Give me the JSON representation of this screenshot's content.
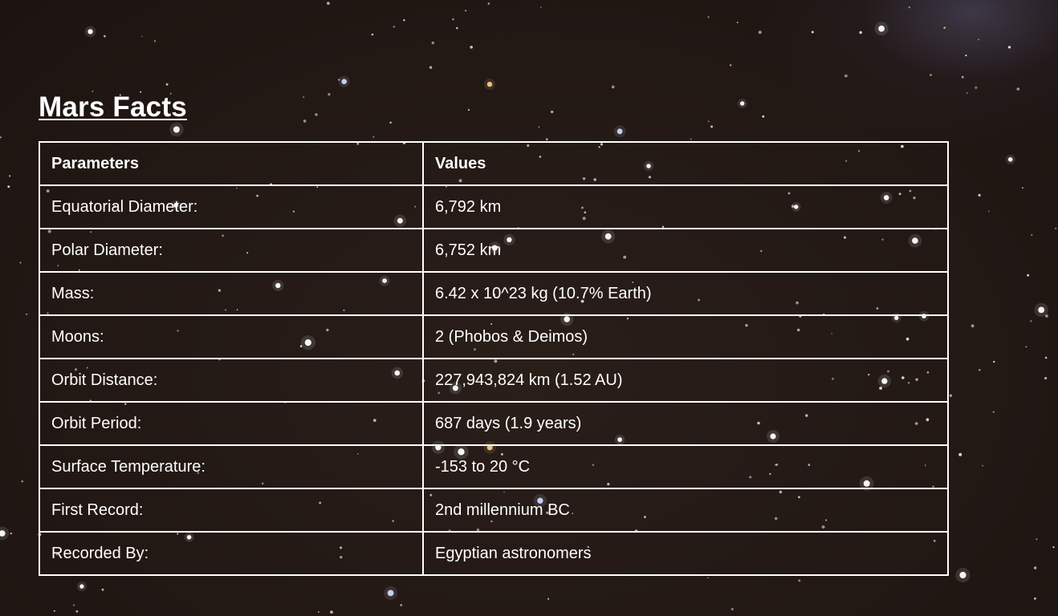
{
  "page": {
    "title": "Mars Facts"
  },
  "table": {
    "headers": [
      "Parameters",
      "Values"
    ],
    "rows": [
      [
        "Equatorial Diameter:",
        "6,792 km"
      ],
      [
        "Polar Diameter:",
        "6,752 km"
      ],
      [
        "Mass:",
        "6.42 x 10^23 kg (10.7% Earth)"
      ],
      [
        "Moons:",
        "2 (Phobos & Deimos)"
      ],
      [
        "Orbit Distance:",
        "227,943,824 km (1.52 AU)"
      ],
      [
        "Orbit Period:",
        "687 days (1.9 years)"
      ],
      [
        "Surface Temperature:",
        "-153 to 20 °C"
      ],
      [
        "First Record:",
        "2nd millennium BC"
      ],
      [
        "Recorded By:",
        "Egyptian astronomers"
      ]
    ]
  },
  "colors": {
    "background": "#251a16",
    "text": "#ffffff",
    "border": "#ffffff"
  }
}
